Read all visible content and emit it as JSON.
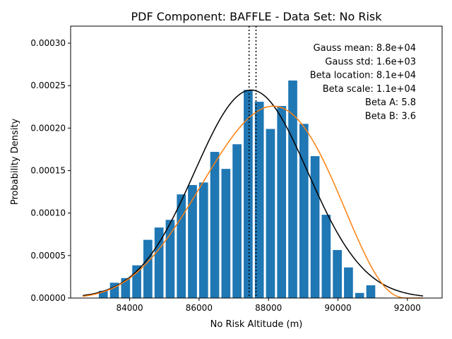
{
  "chart_data": {
    "type": "bar",
    "title": "PDF Component: BAFFLE - Data Set: No Risk",
    "xlabel": "No Risk Altitude (m)",
    "ylabel": "Probability Density",
    "xlim": [
      82300,
      93000
    ],
    "ylim": [
      0,
      0.00032
    ],
    "xticks": [
      84000,
      86000,
      88000,
      90000,
      92000
    ],
    "xtick_labels": [
      "84000",
      "86000",
      "88000",
      "90000",
      "92000"
    ],
    "yticks": [
      0,
      5e-05,
      0.0001,
      0.00015,
      0.0002,
      0.00025,
      0.0003
    ],
    "ytick_labels": [
      "0.00000",
      "0.00005",
      "0.00010",
      "0.00015",
      "0.00020",
      "0.00025",
      "0.00030"
    ],
    "grid": false,
    "bar_color": "#1f77b4",
    "bar_width": 258,
    "bars": {
      "x": [
        83241,
        83562,
        83883,
        84204,
        84525,
        84846,
        85167,
        85488,
        85809,
        86130,
        86451,
        86772,
        87093,
        87414,
        87735,
        88056,
        88377,
        88698,
        89019,
        89340,
        89661,
        89982,
        90303,
        90624,
        90945,
        91266
      ],
      "values": [
        8.5e-06,
        1.8e-05,
        2.35e-05,
        3.85e-05,
        6.85e-05,
        8.3e-05,
        9.2e-05,
        0.000122,
        0.000133,
        0.000136,
        0.000172,
        0.000152,
        0.000181,
        0.000245,
        0.000231,
        0.000199,
        0.000226,
        0.000256,
        0.000205,
        0.000167,
        9.8e-05,
        5.65e-05,
        3.6e-05,
        6e-06,
        1.5e-05,
        5e-07
      ]
    },
    "series": [
      {
        "name": "Gauss",
        "color": "#000000",
        "kind": "gauss",
        "mean": 87500,
        "std": 1630,
        "x_range": [
          82650,
          92450
        ]
      },
      {
        "name": "Beta",
        "color": "#ff7f0e",
        "kind": "beta",
        "location": 81000,
        "scale": 11000,
        "a": 5.8,
        "b": 3.6,
        "x_range": [
          82650,
          92450
        ]
      }
    ],
    "vlines": [
      87440,
      87640
    ],
    "vline_style": "dotted",
    "annotations": [
      "Gauss mean: 8.8e+04",
      "Gauss std: 1.6e+03",
      "Beta location: 8.1e+04",
      "Beta scale: 1.1e+04",
      "Beta A: 5.8",
      "Beta B: 3.6"
    ]
  }
}
